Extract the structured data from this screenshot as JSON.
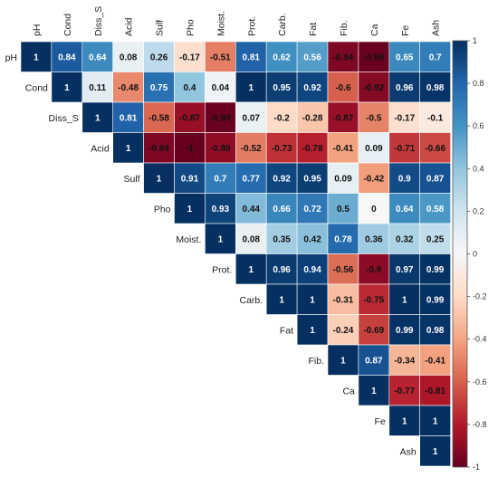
{
  "chart_data": {
    "type": "heatmap",
    "variables": [
      "pH",
      "Cond",
      "Diss_S",
      "Acid",
      "Sulf",
      "Pho",
      "Moist.",
      "Prot.",
      "Carb.",
      "Fat",
      "Fib.",
      "Ca",
      "Fe",
      "Ash"
    ],
    "matrix_upper": [
      [
        1,
        0.84,
        0.64,
        0.08,
        0.26,
        -0.17,
        -0.51,
        0.81,
        0.62,
        0.56,
        -0.94,
        -0.99,
        0.65,
        0.7
      ],
      [
        1,
        0.11,
        -0.48,
        0.75,
        0.4,
        0.04,
        1,
        0.95,
        0.92,
        -0.6,
        -0.92,
        0.96,
        0.98
      ],
      [
        1,
        0.81,
        -0.58,
        -0.87,
        -0.99,
        0.07,
        -0.2,
        -0.28,
        -0.87,
        -0.5,
        -0.17,
        -0.1
      ],
      [
        1,
        -0.94,
        -1,
        -0.89,
        -0.52,
        -0.73,
        -0.78,
        -0.41,
        0.09,
        -0.71,
        -0.66
      ],
      [
        1,
        0.91,
        0.7,
        0.77,
        0.92,
        0.95,
        0.09,
        -0.42,
        0.9,
        0.87
      ],
      [
        1,
        0.93,
        0.44,
        0.66,
        0.72,
        0.5,
        0,
        0.64,
        0.58
      ],
      [
        1,
        0.08,
        0.35,
        0.42,
        0.78,
        0.36,
        0.32,
        0.25
      ],
      [
        1,
        0.96,
        0.94,
        -0.56,
        -0.9,
        0.97,
        0.99
      ],
      [
        1,
        1,
        -0.31,
        -0.75,
        1,
        0.99
      ],
      [
        1,
        -0.24,
        -0.69,
        0.99,
        0.98
      ],
      [
        1,
        0.87,
        -0.34,
        -0.41
      ],
      [
        1,
        -0.77,
        -0.81
      ],
      [
        1,
        1
      ],
      [
        1
      ]
    ],
    "colorbar_ticks": [
      "1",
      "0.8",
      "0.6",
      "0.4",
      "0.2",
      "0",
      "-0.2",
      "-0.4",
      "-0.6",
      "-0.8",
      "-1"
    ],
    "value_range": [
      -1,
      1
    ],
    "colors": {
      "negative": "#67001f",
      "neutral": "#f7f7f7",
      "positive": "#053061"
    },
    "grid": true,
    "legend_position": "right"
  }
}
